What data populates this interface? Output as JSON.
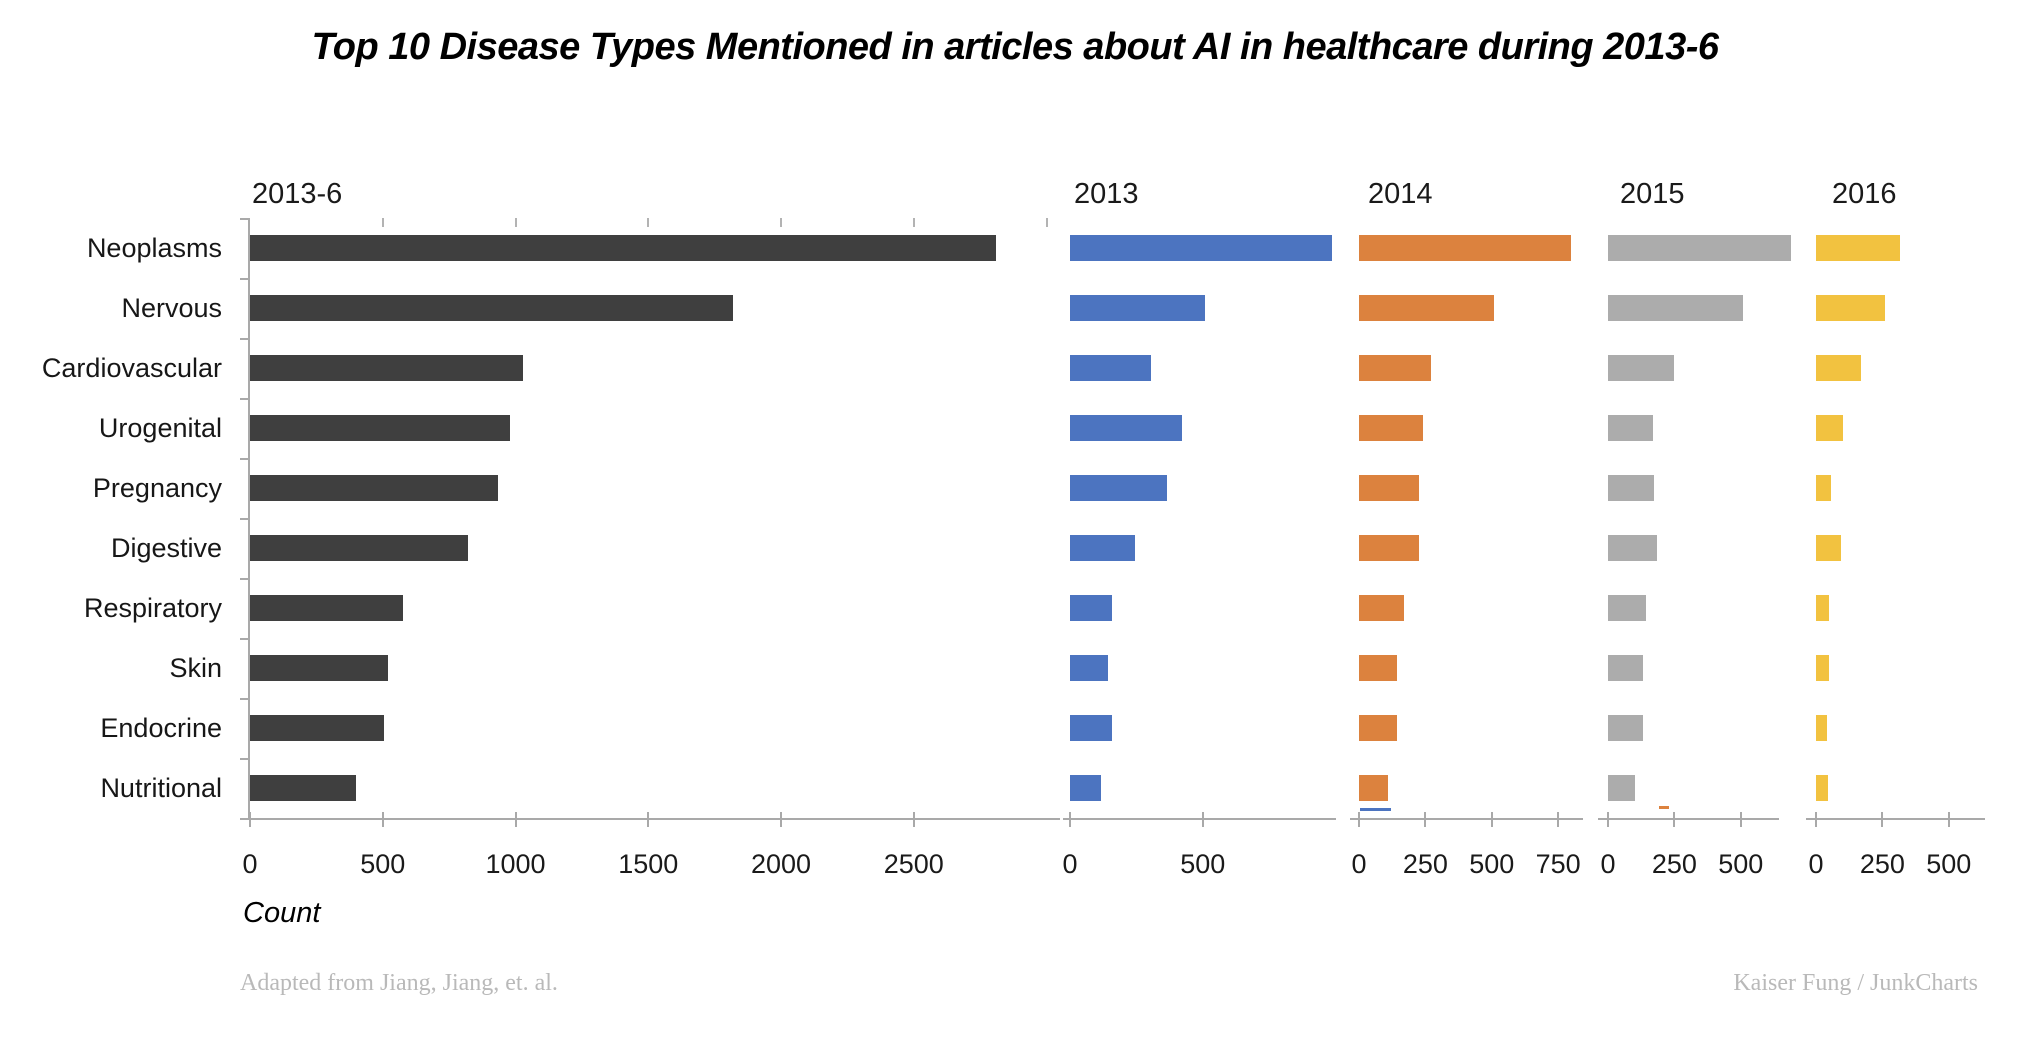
{
  "chart_data": {
    "type": "bar",
    "title": "Top 10 Disease Types Mentioned in articles about AI in healthcare during 2013-6",
    "xlabel": "Count",
    "orientation": "horizontal",
    "grid": false,
    "legend": false,
    "categories": [
      "Neoplasms",
      "Nervous",
      "Cardiovascular",
      "Urogenital",
      "Pregnancy",
      "Digestive",
      "Respiratory",
      "Skin",
      "Endocrine",
      "Nutritional"
    ],
    "panels": [
      {
        "label": "2013-6",
        "color": "#3F3F3F",
        "axis_ticks": [
          0,
          500,
          1000,
          1500,
          2000,
          2500
        ],
        "axis_range": [
          0,
          3050
        ],
        "values": [
          2810,
          1820,
          1030,
          980,
          935,
          820,
          575,
          520,
          505,
          400
        ]
      },
      {
        "label": "2013",
        "color": "#4C74C0",
        "axis_ticks": [
          0,
          500
        ],
        "axis_range": [
          0,
          1000
        ],
        "values": [
          985,
          510,
          305,
          420,
          365,
          245,
          160,
          145,
          160,
          115
        ]
      },
      {
        "label": "2014",
        "color": "#DC823E",
        "axis_ticks": [
          0,
          250,
          500,
          750
        ],
        "axis_range": [
          0,
          845
        ],
        "values": [
          800,
          510,
          270,
          240,
          225,
          225,
          170,
          145,
          145,
          110
        ]
      },
      {
        "label": "2015",
        "color": "#ACACAC",
        "axis_ticks": [
          0,
          250,
          500
        ],
        "axis_range": [
          0,
          645
        ],
        "values": [
          690,
          510,
          250,
          170,
          175,
          185,
          145,
          130,
          130,
          100
        ]
      },
      {
        "label": "2016",
        "color": "#F2C240",
        "axis_ticks": [
          0,
          250,
          500
        ],
        "axis_range": [
          0,
          635
        ],
        "values": [
          315,
          260,
          170,
          100,
          55,
          95,
          50,
          50,
          40,
          45
        ]
      }
    ],
    "footnote_left": "Adapted from Jiang, Jiang, et. al.",
    "footnote_right": "Kaiser Fung / JunkCharts"
  }
}
